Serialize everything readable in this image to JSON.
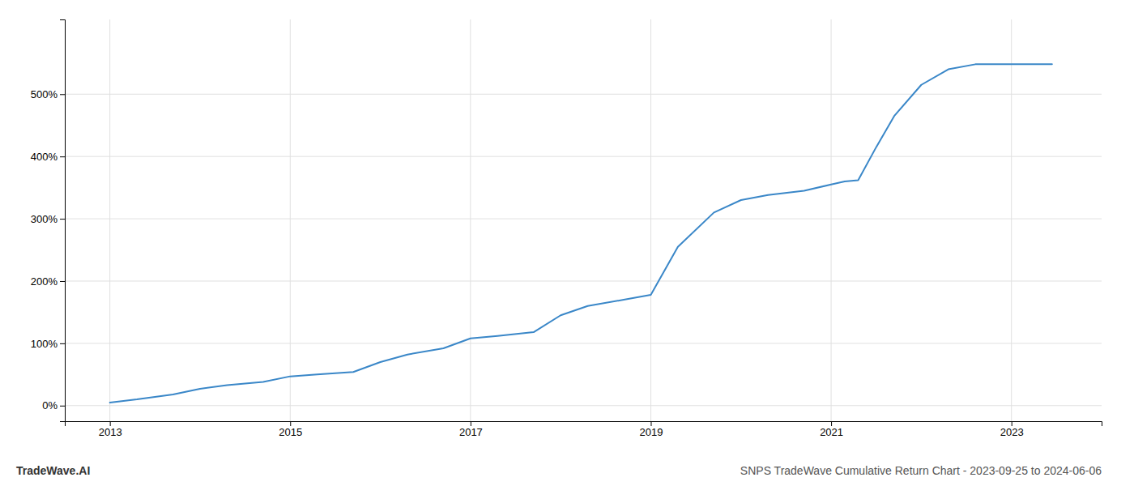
{
  "chart_data": {
    "type": "line",
    "title": "SNPS TradeWave Cumulative Return Chart - 2023-09-25 to 2024-06-06",
    "annotations": [
      "TradeWave.AI"
    ],
    "color": "#3a87c8",
    "x": [
      2013.0,
      2013.3,
      2013.7,
      2014.0,
      2014.3,
      2014.7,
      2015.0,
      2015.3,
      2015.7,
      2016.0,
      2016.3,
      2016.7,
      2017.0,
      2017.3,
      2017.7,
      2018.0,
      2018.3,
      2018.7,
      2019.0,
      2019.3,
      2019.7,
      2020.0,
      2020.3,
      2020.7,
      2021.0,
      2021.15,
      2021.3,
      2021.5,
      2021.7,
      2022.0,
      2022.3,
      2022.6,
      2023.0,
      2023.45
    ],
    "values": [
      5,
      10,
      18,
      27,
      33,
      38,
      47,
      50,
      54,
      70,
      82,
      92,
      108,
      112,
      118,
      145,
      160,
      170,
      178,
      255,
      310,
      330,
      338,
      345,
      355,
      360,
      362,
      415,
      465,
      515,
      540,
      548,
      548,
      548
    ],
    "xlim": [
      2012.5,
      2024.0
    ],
    "ylim": [
      -25,
      620
    ],
    "xticks": [
      2013,
      2015,
      2017,
      2019,
      2021,
      2023
    ],
    "yticks": [
      {
        "value": 0,
        "label": "0%"
      },
      {
        "value": 100,
        "label": "100%"
      },
      {
        "value": 200,
        "label": "200%"
      },
      {
        "value": 300,
        "label": "300%"
      },
      {
        "value": 400,
        "label": "400%"
      },
      {
        "value": 500,
        "label": "500%"
      }
    ],
    "grid": true
  }
}
